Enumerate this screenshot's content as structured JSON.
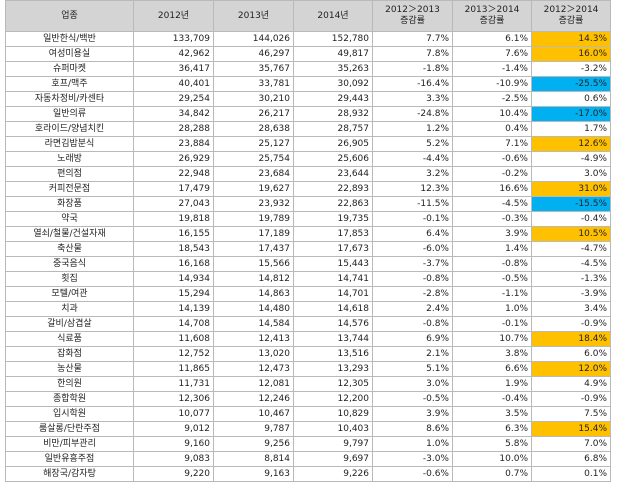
{
  "table": {
    "headers": [
      "업종",
      "2012년",
      "2013년",
      "2014년",
      "2012＞2013\n증감률",
      "2013＞2014\n증감률",
      "2012＞2014\n증감률"
    ],
    "highlight_colors": {
      "orange": "#ffc000",
      "blue": "#00b0f0"
    },
    "rows": [
      {
        "name": "일반한식/백반",
        "y2012": "133,709",
        "y2013": "144,026",
        "y2014": "152,780",
        "r1213": "7.7%",
        "r1314": "6.1%",
        "r1214": "14.3%",
        "hl": "orange"
      },
      {
        "name": "여성미용실",
        "y2012": "42,962",
        "y2013": "46,297",
        "y2014": "49,817",
        "r1213": "7.8%",
        "r1314": "7.6%",
        "r1214": "16.0%",
        "hl": "orange"
      },
      {
        "name": "슈퍼마켓",
        "y2012": "36,417",
        "y2013": "35,767",
        "y2014": "35,263",
        "r1213": "-1.8%",
        "r1314": "-1.4%",
        "r1214": "-3.2%",
        "hl": ""
      },
      {
        "name": "호프/맥주",
        "y2012": "40,401",
        "y2013": "33,781",
        "y2014": "30,092",
        "r1213": "-16.4%",
        "r1314": "-10.9%",
        "r1214": "-25.5%",
        "hl": "blue"
      },
      {
        "name": "자동차정비/카센타",
        "y2012": "29,254",
        "y2013": "30,210",
        "y2014": "29,443",
        "r1213": "3.3%",
        "r1314": "-2.5%",
        "r1214": "0.6%",
        "hl": ""
      },
      {
        "name": "일반의류",
        "y2012": "34,842",
        "y2013": "26,217",
        "y2014": "28,932",
        "r1213": "-24.8%",
        "r1314": "10.4%",
        "r1214": "-17.0%",
        "hl": "blue"
      },
      {
        "name": "호라이드/양념치킨",
        "y2012": "28,288",
        "y2013": "28,638",
        "y2014": "28,757",
        "r1213": "1.2%",
        "r1314": "0.4%",
        "r1214": "1.7%",
        "hl": ""
      },
      {
        "name": "라면김밥분식",
        "y2012": "23,884",
        "y2013": "25,127",
        "y2014": "26,905",
        "r1213": "5.2%",
        "r1314": "7.1%",
        "r1214": "12.6%",
        "hl": "orange"
      },
      {
        "name": "노래방",
        "y2012": "26,929",
        "y2013": "25,754",
        "y2014": "25,606",
        "r1213": "-4.4%",
        "r1314": "-0.6%",
        "r1214": "-4.9%",
        "hl": ""
      },
      {
        "name": "편의점",
        "y2012": "22,948",
        "y2013": "23,684",
        "y2014": "23,644",
        "r1213": "3.2%",
        "r1314": "-0.2%",
        "r1214": "3.0%",
        "hl": ""
      },
      {
        "name": "커피전문점",
        "y2012": "17,479",
        "y2013": "19,627",
        "y2014": "22,893",
        "r1213": "12.3%",
        "r1314": "16.6%",
        "r1214": "31.0%",
        "hl": "orange"
      },
      {
        "name": "화장품",
        "y2012": "27,043",
        "y2013": "23,932",
        "y2014": "22,863",
        "r1213": "-11.5%",
        "r1314": "-4.5%",
        "r1214": "-15.5%",
        "hl": "blue"
      },
      {
        "name": "약국",
        "y2012": "19,818",
        "y2013": "19,789",
        "y2014": "19,735",
        "r1213": "-0.1%",
        "r1314": "-0.3%",
        "r1214": "-0.4%",
        "hl": ""
      },
      {
        "name": "열쇠/철물/건설자재",
        "y2012": "16,155",
        "y2013": "17,189",
        "y2014": "17,853",
        "r1213": "6.4%",
        "r1314": "3.9%",
        "r1214": "10.5%",
        "hl": "orange"
      },
      {
        "name": "축산물",
        "y2012": "18,543",
        "y2013": "17,437",
        "y2014": "17,673",
        "r1213": "-6.0%",
        "r1314": "1.4%",
        "r1214": "-4.7%",
        "hl": ""
      },
      {
        "name": "중국음식",
        "y2012": "16,168",
        "y2013": "15,566",
        "y2014": "15,443",
        "r1213": "-3.7%",
        "r1314": "-0.8%",
        "r1214": "-4.5%",
        "hl": ""
      },
      {
        "name": "횟집",
        "y2012": "14,934",
        "y2013": "14,812",
        "y2014": "14,741",
        "r1213": "-0.8%",
        "r1314": "-0.5%",
        "r1214": "-1.3%",
        "hl": ""
      },
      {
        "name": "모텔/여관",
        "y2012": "15,294",
        "y2013": "14,863",
        "y2014": "14,701",
        "r1213": "-2.8%",
        "r1314": "-1.1%",
        "r1214": "-3.9%",
        "hl": ""
      },
      {
        "name": "치과",
        "y2012": "14,139",
        "y2013": "14,480",
        "y2014": "14,618",
        "r1213": "2.4%",
        "r1314": "1.0%",
        "r1214": "3.4%",
        "hl": ""
      },
      {
        "name": "갈비/삼겹살",
        "y2012": "14,708",
        "y2013": "14,584",
        "y2014": "14,576",
        "r1213": "-0.8%",
        "r1314": "-0.1%",
        "r1214": "-0.9%",
        "hl": ""
      },
      {
        "name": "식료품",
        "y2012": "11,608",
        "y2013": "12,413",
        "y2014": "13,744",
        "r1213": "6.9%",
        "r1314": "10.7%",
        "r1214": "18.4%",
        "hl": "orange"
      },
      {
        "name": "잡화점",
        "y2012": "12,752",
        "y2013": "13,020",
        "y2014": "13,516",
        "r1213": "2.1%",
        "r1314": "3.8%",
        "r1214": "6.0%",
        "hl": ""
      },
      {
        "name": "농산물",
        "y2012": "11,865",
        "y2013": "12,473",
        "y2014": "13,293",
        "r1213": "5.1%",
        "r1314": "6.6%",
        "r1214": "12.0%",
        "hl": "orange"
      },
      {
        "name": "한의원",
        "y2012": "11,731",
        "y2013": "12,081",
        "y2014": "12,305",
        "r1213": "3.0%",
        "r1314": "1.9%",
        "r1214": "4.9%",
        "hl": ""
      },
      {
        "name": "종합학원",
        "y2012": "12,306",
        "y2013": "12,246",
        "y2014": "12,200",
        "r1213": "-0.5%",
        "r1314": "-0.4%",
        "r1214": "-0.9%",
        "hl": ""
      },
      {
        "name": "입시학원",
        "y2012": "10,077",
        "y2013": "10,467",
        "y2014": "10,829",
        "r1213": "3.9%",
        "r1314": "3.5%",
        "r1214": "7.5%",
        "hl": ""
      },
      {
        "name": "룸살롱/단란주점",
        "y2012": "9,012",
        "y2013": "9,787",
        "y2014": "10,403",
        "r1213": "8.6%",
        "r1314": "6.3%",
        "r1214": "15.4%",
        "hl": "orange"
      },
      {
        "name": "비만/피부관리",
        "y2012": "9,160",
        "y2013": "9,256",
        "y2014": "9,797",
        "r1213": "1.0%",
        "r1314": "5.8%",
        "r1214": "7.0%",
        "hl": ""
      },
      {
        "name": "일반유흥주점",
        "y2012": "9,083",
        "y2013": "8,814",
        "y2014": "9,697",
        "r1213": "-3.0%",
        "r1314": "10.0%",
        "r1214": "6.8%",
        "hl": ""
      },
      {
        "name": "해장국/감자탕",
        "y2012": "9,220",
        "y2013": "9,163",
        "y2014": "9,226",
        "r1213": "-0.6%",
        "r1314": "0.7%",
        "r1214": "0.1%",
        "hl": ""
      }
    ]
  }
}
